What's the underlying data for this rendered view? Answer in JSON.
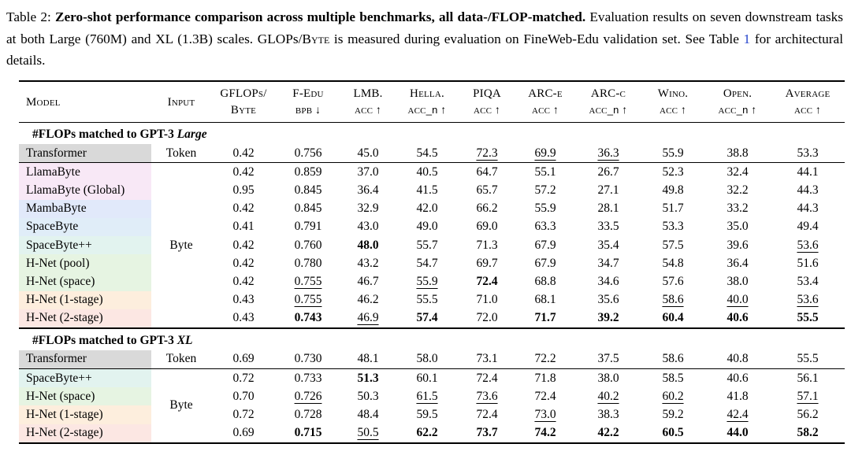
{
  "caption": {
    "label": "Table 2: ",
    "bold": "Zero-shot performance comparison across multiple benchmarks, all data-/FLOP-matched.",
    "text_a": " Evaluation results on seven downstream tasks at both Large (760M) and XL (1.3B) scales. GLOPs/",
    "byte_sc": "Byte",
    "text_b": " is measured during evaluation on FineWeb-Edu validation set. See Table ",
    "table_link": "1",
    "text_c": " for architectural details.",
    "link_color": "#2645cc"
  },
  "table": {
    "columns": [
      {
        "top": "Model",
        "bottom": "",
        "sub": "",
        "arrow": ""
      },
      {
        "top": "Input",
        "bottom": "",
        "sub": "",
        "arrow": ""
      },
      {
        "top": "GFLOPs/",
        "bottom": "Byte",
        "sub": "",
        "arrow": ""
      },
      {
        "top": "F-Edu",
        "bottom": "bpb",
        "sub": "",
        "arrow": "↓"
      },
      {
        "top": "LMB.",
        "bottom": "acc",
        "sub": "",
        "arrow": "↑"
      },
      {
        "top": "Hella.",
        "bottom": "acc",
        "sub": "_n",
        "arrow": "↑"
      },
      {
        "top": "PIQA",
        "bottom": "acc",
        "sub": "",
        "arrow": "↑"
      },
      {
        "top": "ARC-e",
        "bottom": "acc",
        "sub": "",
        "arrow": "↑"
      },
      {
        "top": "ARC-c",
        "bottom": "acc",
        "sub": "_n",
        "arrow": "↑"
      },
      {
        "top": "Wino.",
        "bottom": "acc",
        "sub": "",
        "arrow": "↑"
      },
      {
        "top": "Open.",
        "bottom": "acc",
        "sub": "_n",
        "arrow": "↑"
      },
      {
        "top": "Average",
        "bottom": "acc",
        "sub": "",
        "arrow": "↑"
      }
    ],
    "row_colors": {
      "gray": "#d9d9d9",
      "pink": "#f8e8f6",
      "blue": "#e1e9fa",
      "cyan": "#e0edf8",
      "teal": "#e2f3ef",
      "green": "#e6f4e2",
      "peach": "#fdeedd",
      "red": "#fce7e3"
    },
    "sections": [
      {
        "title_prefix": "#FLOPs matched to GPT-3 ",
        "title_em": "Large",
        "rows": [
          {
            "model": "Transformer",
            "color": "gray",
            "input": "Token",
            "rule_below": true,
            "values": [
              {
                "v": "0.42"
              },
              {
                "v": "0.756"
              },
              {
                "v": "45.0"
              },
              {
                "v": "54.5"
              },
              {
                "v": "72.3",
                "u": 1
              },
              {
                "v": "69.9",
                "u": 1
              },
              {
                "v": "36.3",
                "u": 1
              },
              {
                "v": "55.9"
              },
              {
                "v": "38.8"
              },
              {
                "v": "53.3"
              }
            ]
          },
          {
            "model": "LlamaByte",
            "color": "pink",
            "input_rowspan": {
              "label": "Byte",
              "rows": 9
            },
            "values": [
              {
                "v": "0.42"
              },
              {
                "v": "0.859"
              },
              {
                "v": "37.0"
              },
              {
                "v": "40.5"
              },
              {
                "v": "64.7"
              },
              {
                "v": "55.1"
              },
              {
                "v": "26.7"
              },
              {
                "v": "52.3"
              },
              {
                "v": "32.4"
              },
              {
                "v": "44.1"
              }
            ]
          },
          {
            "model": "LlamaByte (Global)",
            "color": "pink",
            "values": [
              {
                "v": "0.95"
              },
              {
                "v": "0.845"
              },
              {
                "v": "36.4"
              },
              {
                "v": "41.5"
              },
              {
                "v": "65.7"
              },
              {
                "v": "57.2"
              },
              {
                "v": "27.1"
              },
              {
                "v": "49.8"
              },
              {
                "v": "32.2"
              },
              {
                "v": "44.3"
              }
            ]
          },
          {
            "model": "MambaByte",
            "color": "blue",
            "values": [
              {
                "v": "0.42"
              },
              {
                "v": "0.845"
              },
              {
                "v": "32.9"
              },
              {
                "v": "42.0"
              },
              {
                "v": "66.2"
              },
              {
                "v": "55.9"
              },
              {
                "v": "28.1"
              },
              {
                "v": "51.7"
              },
              {
                "v": "33.2"
              },
              {
                "v": "44.3"
              }
            ]
          },
          {
            "model": "SpaceByte",
            "color": "cyan",
            "values": [
              {
                "v": "0.41"
              },
              {
                "v": "0.791"
              },
              {
                "v": "43.0"
              },
              {
                "v": "49.0"
              },
              {
                "v": "69.0"
              },
              {
                "v": "63.3"
              },
              {
                "v": "33.5"
              },
              {
                "v": "53.3"
              },
              {
                "v": "35.0"
              },
              {
                "v": "49.4"
              }
            ]
          },
          {
            "model": "SpaceByte++",
            "color": "teal",
            "values": [
              {
                "v": "0.42"
              },
              {
                "v": "0.760"
              },
              {
                "v": "48.0",
                "b": 1
              },
              {
                "v": "55.7"
              },
              {
                "v": "71.3"
              },
              {
                "v": "67.9"
              },
              {
                "v": "35.4"
              },
              {
                "v": "57.5"
              },
              {
                "v": "39.6"
              },
              {
                "v": "53.6",
                "u": 1
              }
            ]
          },
          {
            "model": "H-Net (pool)",
            "color": "green",
            "values": [
              {
                "v": "0.42"
              },
              {
                "v": "0.780"
              },
              {
                "v": "43.2"
              },
              {
                "v": "54.7"
              },
              {
                "v": "69.7"
              },
              {
                "v": "67.9"
              },
              {
                "v": "34.7"
              },
              {
                "v": "54.8"
              },
              {
                "v": "36.4"
              },
              {
                "v": "51.6"
              }
            ]
          },
          {
            "model": "H-Net (space)",
            "color": "green",
            "values": [
              {
                "v": "0.42"
              },
              {
                "v": "0.755",
                "u": 1
              },
              {
                "v": "46.7"
              },
              {
                "v": "55.9",
                "u": 1
              },
              {
                "v": "72.4",
                "b": 1
              },
              {
                "v": "68.8"
              },
              {
                "v": "34.6"
              },
              {
                "v": "57.6"
              },
              {
                "v": "38.0"
              },
              {
                "v": "53.4"
              }
            ]
          },
          {
            "model": "H-Net (1-stage)",
            "color": "peach",
            "values": [
              {
                "v": "0.43"
              },
              {
                "v": "0.755",
                "u": 1
              },
              {
                "v": "46.2"
              },
              {
                "v": "55.5"
              },
              {
                "v": "71.0"
              },
              {
                "v": "68.1"
              },
              {
                "v": "35.6"
              },
              {
                "v": "58.6",
                "u": 1
              },
              {
                "v": "40.0",
                "u": 1
              },
              {
                "v": "53.6",
                "u": 1
              }
            ]
          },
          {
            "model": "H-Net (2-stage)",
            "color": "red",
            "values": [
              {
                "v": "0.43"
              },
              {
                "v": "0.743",
                "b": 1
              },
              {
                "v": "46.9",
                "u": 1
              },
              {
                "v": "57.4",
                "b": 1
              },
              {
                "v": "72.0"
              },
              {
                "v": "71.7",
                "b": 1
              },
              {
                "v": "39.2",
                "b": 1
              },
              {
                "v": "60.4",
                "b": 1
              },
              {
                "v": "40.6",
                "b": 1
              },
              {
                "v": "55.5",
                "b": 1
              }
            ]
          }
        ]
      },
      {
        "title_prefix": "#FLOPs matched to GPT-3 ",
        "title_em": "XL",
        "rows": [
          {
            "model": "Transformer",
            "color": "gray",
            "input": "Token",
            "rule_below": true,
            "values": [
              {
                "v": "0.69"
              },
              {
                "v": "0.730"
              },
              {
                "v": "48.1"
              },
              {
                "v": "58.0"
              },
              {
                "v": "73.1"
              },
              {
                "v": "72.2"
              },
              {
                "v": "37.5"
              },
              {
                "v": "58.6"
              },
              {
                "v": "40.8"
              },
              {
                "v": "55.5"
              }
            ]
          },
          {
            "model": "SpaceByte++",
            "color": "teal",
            "input_rowspan": {
              "label": "Byte",
              "rows": 4
            },
            "values": [
              {
                "v": "0.72"
              },
              {
                "v": "0.733"
              },
              {
                "v": "51.3",
                "b": 1
              },
              {
                "v": "60.1"
              },
              {
                "v": "72.4"
              },
              {
                "v": "71.8"
              },
              {
                "v": "38.0"
              },
              {
                "v": "58.5"
              },
              {
                "v": "40.6"
              },
              {
                "v": "56.1"
              }
            ]
          },
          {
            "model": "H-Net (space)",
            "color": "green",
            "values": [
              {
                "v": "0.70"
              },
              {
                "v": "0.726",
                "u": 1
              },
              {
                "v": "50.3"
              },
              {
                "v": "61.5",
                "u": 1
              },
              {
                "v": "73.6",
                "u": 1
              },
              {
                "v": "72.4"
              },
              {
                "v": "40.2",
                "u": 1
              },
              {
                "v": "60.2",
                "u": 1
              },
              {
                "v": "41.8"
              },
              {
                "v": "57.1",
                "u": 1
              }
            ]
          },
          {
            "model": "H-Net (1-stage)",
            "color": "peach",
            "values": [
              {
                "v": "0.72"
              },
              {
                "v": "0.728"
              },
              {
                "v": "48.4"
              },
              {
                "v": "59.5"
              },
              {
                "v": "72.4"
              },
              {
                "v": "73.0",
                "u": 1
              },
              {
                "v": "38.3"
              },
              {
                "v": "59.2"
              },
              {
                "v": "42.4",
                "u": 1
              },
              {
                "v": "56.2"
              }
            ]
          },
          {
            "model": "H-Net (2-stage)",
            "color": "red",
            "values": [
              {
                "v": "0.69"
              },
              {
                "v": "0.715",
                "b": 1
              },
              {
                "v": "50.5",
                "u": 1
              },
              {
                "v": "62.2",
                "b": 1
              },
              {
                "v": "73.7",
                "b": 1
              },
              {
                "v": "74.2",
                "b": 1
              },
              {
                "v": "42.2",
                "b": 1
              },
              {
                "v": "60.5",
                "b": 1
              },
              {
                "v": "44.0",
                "b": 1
              },
              {
                "v": "58.2",
                "b": 1
              }
            ]
          }
        ]
      }
    ]
  }
}
